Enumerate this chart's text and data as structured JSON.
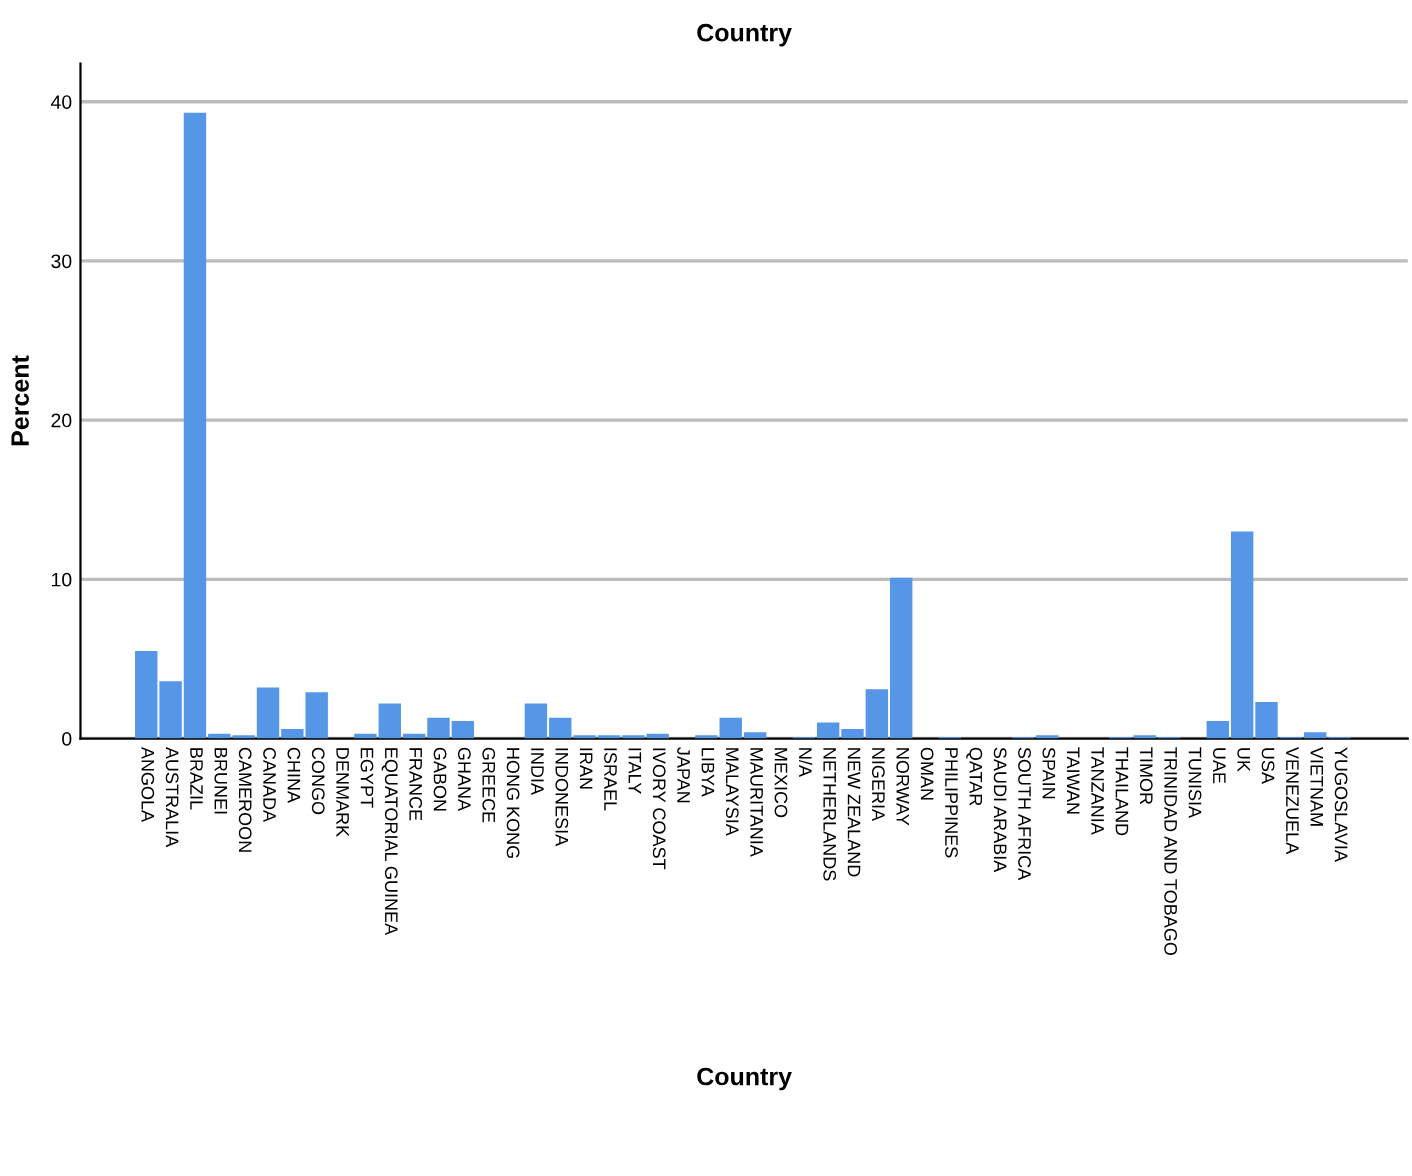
{
  "chart_data": {
    "type": "bar",
    "title": "Country",
    "xlabel": "Country",
    "ylabel": "Percent",
    "categories": [
      "ANGOLA",
      "AUSTRALIA",
      "BRAZIL",
      "BRUNEI",
      "CAMEROON",
      "CANADA",
      "CHINA",
      "CONGO",
      "DENMARK",
      "EGYPT",
      "EQUATORIAL GUINEA",
      "FRANCE",
      "GABON",
      "GHANA",
      "GREECE",
      "HONG KONG",
      "INDIA",
      "INDONESIA",
      "IRAN",
      "ISRAEL",
      "ITALY",
      "IVORY COAST",
      "JAPAN",
      "LIBYA",
      "MALAYSIA",
      "MAURITANIA",
      "MEXICO",
      "N/A",
      "NETHERLANDS",
      "NEW ZEALAND",
      "NIGERIA",
      "NORWAY",
      "OMAN",
      "PHILIPPINES",
      "QATAR",
      "SAUDI ARABIA",
      "SOUTH AFRICA",
      "SPAIN",
      "TAIWAN",
      "TANZANIA",
      "THAILAND",
      "TIMOR",
      "TRINIDAD AND TOBAGO",
      "TUNISIA",
      "UAE",
      "UK",
      "USA",
      "VENEZUELA",
      "VIETNAM",
      "YUGOSLAVIA"
    ],
    "values": [
      5.5,
      3.6,
      39.3,
      0.3,
      0.2,
      3.2,
      0.6,
      2.9,
      0,
      0.3,
      2.2,
      0.3,
      1.3,
      1.1,
      0,
      0,
      2.2,
      1.3,
      0.2,
      0.2,
      0.2,
      0.3,
      0,
      0.2,
      1.3,
      0.4,
      0,
      0.1,
      1.0,
      0.6,
      3.1,
      10.1,
      0,
      0.1,
      0,
      0,
      0.1,
      0.2,
      0,
      0,
      0.1,
      0.2,
      0.1,
      0,
      1.1,
      13.0,
      2.3,
      0.1,
      0.4,
      0.1
    ],
    "color": "#5596e6",
    "ylim": [
      0,
      42.4
    ],
    "yticks": [
      0,
      10,
      20,
      30,
      40
    ],
    "grid": "y"
  }
}
